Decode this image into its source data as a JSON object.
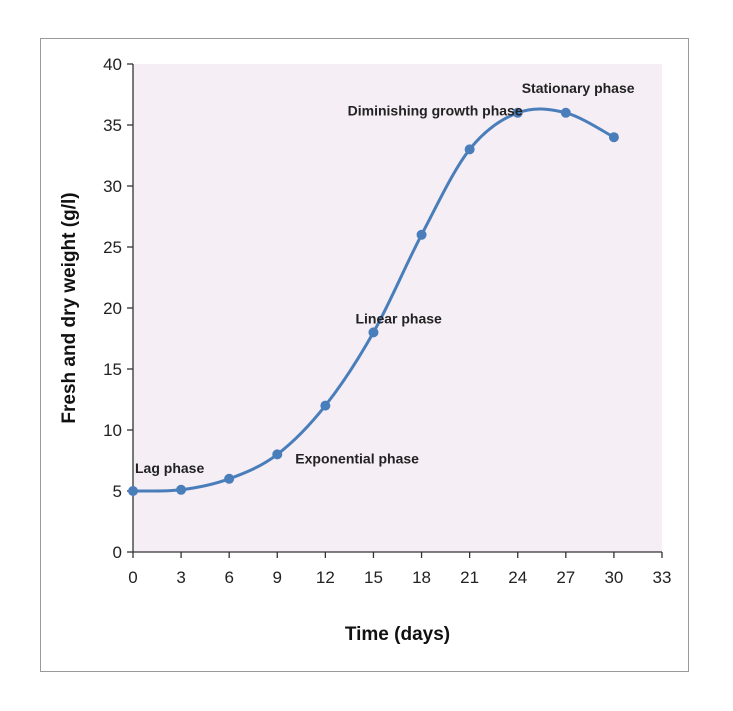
{
  "chart_data": {
    "type": "line",
    "title": "",
    "xlabel": "Time (days)",
    "ylabel": "Fresh and dry weight (g/l)",
    "xlim": [
      0,
      33
    ],
    "ylim": [
      0,
      40
    ],
    "xticks": [
      0,
      3,
      6,
      9,
      12,
      15,
      18,
      21,
      24,
      27,
      30,
      33
    ],
    "yticks": [
      0,
      5,
      10,
      15,
      20,
      25,
      30,
      35,
      40
    ],
    "grid": false,
    "legend": "none",
    "colors": {
      "line": "#4a7ebb",
      "plot_background": "#f5eef5",
      "axis": "#333333"
    },
    "series": [
      {
        "x": [
          0,
          3,
          6,
          9,
          12,
          15,
          18,
          21,
          24,
          27,
          30
        ],
        "y": [
          5,
          5.1,
          6,
          8,
          12,
          18,
          26,
          33,
          36,
          36,
          34
        ]
      }
    ],
    "annotations": [
      {
        "text": "Lag phase",
        "x": 0,
        "y": 5
      },
      {
        "text": "Exponential phase",
        "x": 9,
        "y": 8
      },
      {
        "text": "Linear phase",
        "x": 15,
        "y": 18
      },
      {
        "text": "Diminishing growth phase",
        "x": 21,
        "y": 33
      },
      {
        "text": "Stationary phase",
        "x": 24,
        "y": 36
      }
    ]
  }
}
